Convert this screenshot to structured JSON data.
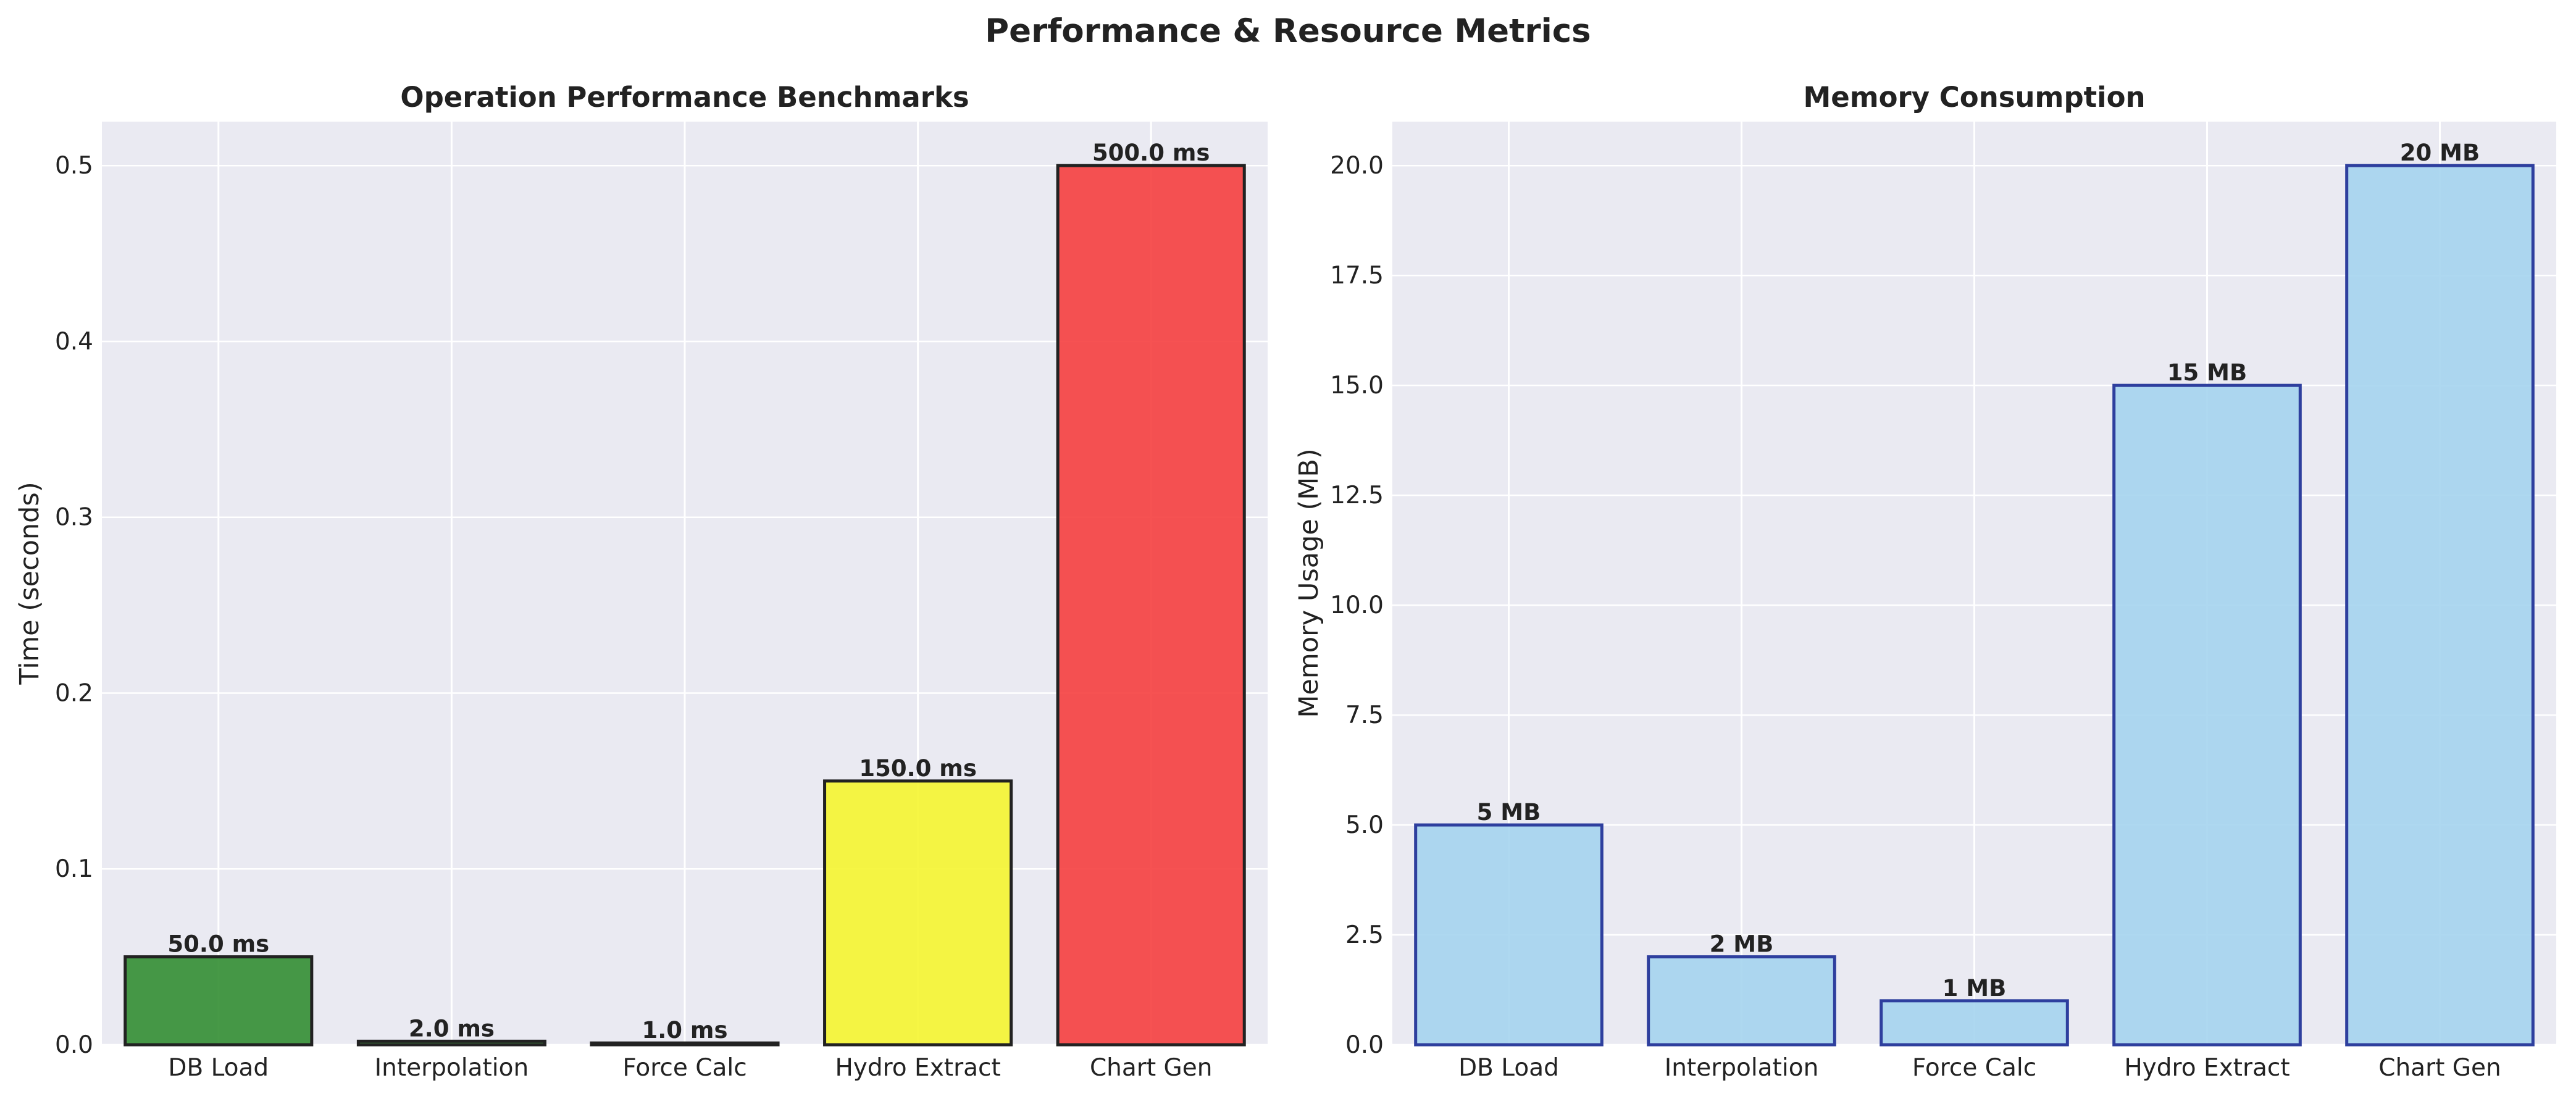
{
  "suptitle": "Performance & Resource Metrics",
  "chart_data": [
    {
      "type": "bar",
      "title": "Operation Performance Benchmarks",
      "xlabel": "",
      "ylabel": "Time (seconds)",
      "categories": [
        "DB Load",
        "Interpolation",
        "Force Calc",
        "Hydro Extract",
        "Chart Gen"
      ],
      "values": [
        0.05,
        0.002,
        0.001,
        0.15,
        0.5
      ],
      "data_labels": [
        "50.0 ms",
        "2.0 ms",
        "1.0 ms",
        "150.0 ms",
        "500.0 ms"
      ],
      "ylim": [
        0,
        0.525
      ],
      "yticks": [
        0.0,
        0.1,
        0.2,
        0.3,
        0.4,
        0.5
      ],
      "ytick_labels": [
        "0.0",
        "0.1",
        "0.2",
        "0.3",
        "0.4",
        "0.5"
      ],
      "bar_colors": [
        "#2e8b2e",
        "#2e8b2e",
        "#2e8b2e",
        "#f5f52a",
        "#f53a3a"
      ],
      "bar_edge_color": "#222222",
      "grid": true
    },
    {
      "type": "bar",
      "title": "Memory Consumption",
      "xlabel": "",
      "ylabel": "Memory Usage (MB)",
      "categories": [
        "DB Load",
        "Interpolation",
        "Force Calc",
        "Hydro Extract",
        "Chart Gen"
      ],
      "values": [
        5,
        2,
        1,
        15,
        20
      ],
      "data_labels": [
        "5 MB",
        "2 MB",
        "1 MB",
        "15 MB",
        "20 MB"
      ],
      "ylim": [
        0,
        21
      ],
      "yticks": [
        0,
        2.5,
        5,
        7.5,
        10,
        12.5,
        15,
        17.5,
        20
      ],
      "ytick_labels": [
        "0.0",
        "2.5",
        "5.0",
        "7.5",
        "10.0",
        "12.5",
        "15.0",
        "17.5",
        "20.0"
      ],
      "bar_colors": [
        "#a3d3ee",
        "#a3d3ee",
        "#a3d3ee",
        "#a3d3ee",
        "#a3d3ee"
      ],
      "bar_edge_color": "#2e3f9e",
      "grid": true
    }
  ]
}
